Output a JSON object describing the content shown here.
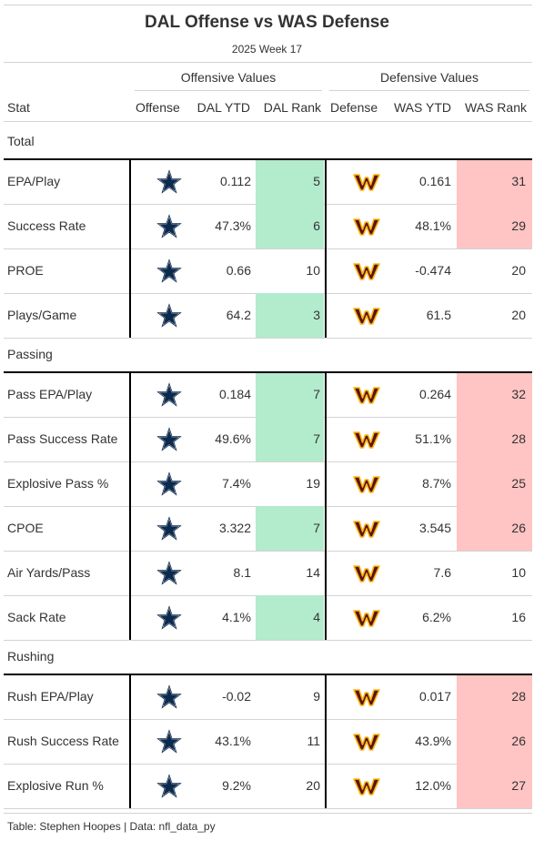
{
  "header": {
    "title": "DAL Offense vs WAS Defense",
    "subtitle": "2025 Week 17"
  },
  "spanners": {
    "offense": "Offensive Values",
    "defense": "Defensive Values"
  },
  "columns": {
    "stat": "Stat",
    "offense": "Offense",
    "dal_ytd": "DAL YTD",
    "dal_rank": "DAL Rank",
    "defense": "Defense",
    "was_ytd": "WAS YTD",
    "was_rank": "WAS Rank"
  },
  "icons": {
    "offense_logo": "dallas-star-icon",
    "defense_logo": "washington-w-icon"
  },
  "colors": {
    "good_rank": "#b3ebcd",
    "bad_rank": "#ffc4c4",
    "dal_navy": "#0c2a4d",
    "was_burgundy": "#5a1414",
    "was_gold": "#ffb612"
  },
  "groups": [
    {
      "label": "Total",
      "rows": [
        {
          "stat": "EPA/Play",
          "dal_ytd": "0.112",
          "dal_rank": "5",
          "dal_rank_hl": "good",
          "was_ytd": "0.161",
          "was_rank": "31",
          "was_rank_hl": "bad"
        },
        {
          "stat": "Success Rate",
          "dal_ytd": "47.3%",
          "dal_rank": "6",
          "dal_rank_hl": "good",
          "was_ytd": "48.1%",
          "was_rank": "29",
          "was_rank_hl": "bad"
        },
        {
          "stat": "PROE",
          "dal_ytd": "0.66",
          "dal_rank": "10",
          "dal_rank_hl": "none",
          "was_ytd": "-0.474",
          "was_rank": "20",
          "was_rank_hl": "none"
        },
        {
          "stat": "Plays/Game",
          "dal_ytd": "64.2",
          "dal_rank": "3",
          "dal_rank_hl": "good",
          "was_ytd": "61.5",
          "was_rank": "20",
          "was_rank_hl": "none"
        }
      ]
    },
    {
      "label": "Passing",
      "rows": [
        {
          "stat": "Pass EPA/Play",
          "dal_ytd": "0.184",
          "dal_rank": "7",
          "dal_rank_hl": "good",
          "was_ytd": "0.264",
          "was_rank": "32",
          "was_rank_hl": "bad"
        },
        {
          "stat": "Pass Success Rate",
          "dal_ytd": "49.6%",
          "dal_rank": "7",
          "dal_rank_hl": "good",
          "was_ytd": "51.1%",
          "was_rank": "28",
          "was_rank_hl": "bad"
        },
        {
          "stat": "Explosive Pass %",
          "dal_ytd": "7.4%",
          "dal_rank": "19",
          "dal_rank_hl": "none",
          "was_ytd": "8.7%",
          "was_rank": "25",
          "was_rank_hl": "bad"
        },
        {
          "stat": "CPOE",
          "dal_ytd": "3.322",
          "dal_rank": "7",
          "dal_rank_hl": "good",
          "was_ytd": "3.545",
          "was_rank": "26",
          "was_rank_hl": "bad"
        },
        {
          "stat": "Air Yards/Pass",
          "dal_ytd": "8.1",
          "dal_rank": "14",
          "dal_rank_hl": "none",
          "was_ytd": "7.6",
          "was_rank": "10",
          "was_rank_hl": "none"
        },
        {
          "stat": "Sack Rate",
          "dal_ytd": "4.1%",
          "dal_rank": "4",
          "dal_rank_hl": "good",
          "was_ytd": "6.2%",
          "was_rank": "16",
          "was_rank_hl": "none"
        }
      ]
    },
    {
      "label": "Rushing",
      "rows": [
        {
          "stat": "Rush EPA/Play",
          "dal_ytd": "-0.02",
          "dal_rank": "9",
          "dal_rank_hl": "none",
          "was_ytd": "0.017",
          "was_rank": "28",
          "was_rank_hl": "bad"
        },
        {
          "stat": "Rush Success Rate",
          "dal_ytd": "43.1%",
          "dal_rank": "11",
          "dal_rank_hl": "none",
          "was_ytd": "43.9%",
          "was_rank": "26",
          "was_rank_hl": "bad"
        },
        {
          "stat": "Explosive Run %",
          "dal_ytd": "9.2%",
          "dal_rank": "20",
          "dal_rank_hl": "none",
          "was_ytd": "12.0%",
          "was_rank": "27",
          "was_rank_hl": "bad"
        }
      ]
    }
  ],
  "footer": "Table: Stephen Hoopes | Data: nfl_data_py"
}
